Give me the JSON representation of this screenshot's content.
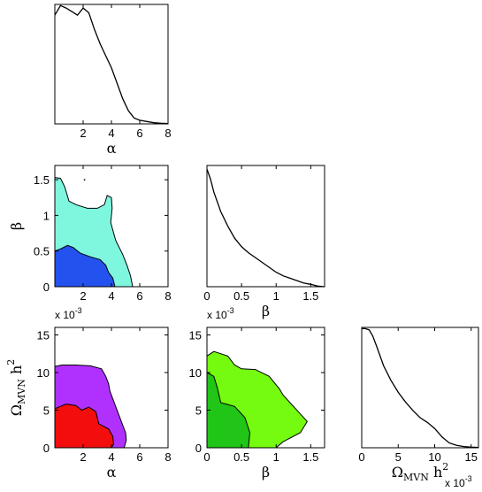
{
  "chart_data": [
    {
      "type": "line",
      "panel": "alpha-marginal",
      "xlabel": "α",
      "xlim": [
        0,
        8
      ],
      "xticks": [
        "2",
        "4",
        "6",
        "8"
      ],
      "x": [
        0,
        0.4,
        0.8,
        1.2,
        1.6,
        2.0,
        2.4,
        2.8,
        3.2,
        3.6,
        4.0,
        4.4,
        4.8,
        5.2,
        5.6,
        6.0,
        6.5,
        7.0,
        7.5,
        8.0
      ],
      "y": [
        0.91,
        0.99,
        0.97,
        0.94,
        0.91,
        0.97,
        0.93,
        0.79,
        0.67,
        0.57,
        0.47,
        0.34,
        0.21,
        0.11,
        0.05,
        0.03,
        0.02,
        0.01,
        0.005,
        0.003
      ],
      "ylim": [
        0,
        1
      ]
    },
    {
      "type": "line",
      "panel": "beta-marginal",
      "xlabel": "β",
      "xlim": [
        0,
        1.7
      ],
      "xticks": [
        "0",
        "0.5",
        "1",
        "1.5"
      ],
      "scale_label": "x 10",
      "scale_exp": "-3",
      "x": [
        0,
        0.05,
        0.1,
        0.2,
        0.3,
        0.4,
        0.5,
        0.6,
        0.7,
        0.8,
        0.9,
        1.0,
        1.1,
        1.2,
        1.3,
        1.4,
        1.5,
        1.6,
        1.7
      ],
      "y": [
        0.97,
        0.89,
        0.78,
        0.62,
        0.5,
        0.4,
        0.33,
        0.28,
        0.24,
        0.2,
        0.16,
        0.12,
        0.09,
        0.07,
        0.05,
        0.03,
        0.02,
        0.005,
        0.0
      ],
      "ylim": [
        0,
        1
      ]
    },
    {
      "type": "line",
      "panel": "omega-marginal",
      "xlabel": "Ω",
      "xlabel_sub": "MVN",
      "xlabel_tail": " h",
      "xlabel_sup": "2",
      "xlim": [
        0,
        16
      ],
      "xticks": [
        "0",
        "5",
        "10",
        "15"
      ],
      "scale_label": "x 10",
      "scale_exp": "-3",
      "x": [
        0,
        0.5,
        1,
        1.5,
        2,
        3,
        4,
        5,
        6,
        7,
        8,
        9,
        10,
        11,
        12,
        13,
        14,
        15,
        16
      ],
      "y": [
        0.99,
        0.99,
        0.98,
        0.93,
        0.85,
        0.68,
        0.56,
        0.46,
        0.38,
        0.31,
        0.25,
        0.21,
        0.16,
        0.09,
        0.04,
        0.02,
        0.01,
        0.005,
        0.003
      ],
      "ylim": [
        0,
        1
      ]
    },
    {
      "type": "contour",
      "panel": "alpha-beta",
      "ylabel": "β",
      "xlim": [
        0,
        8
      ],
      "ylim": [
        0,
        1.7
      ],
      "xticks": [
        "2",
        "4",
        "6",
        "8"
      ],
      "yticks": [
        "0",
        "0.5",
        "1",
        "1.5"
      ],
      "scale_label": "x 10",
      "scale_exp": "-3",
      "outer_color": "#7ff7df",
      "inner_color": "#2352ee",
      "outer": [
        [
          0,
          0
        ],
        [
          0,
          1.53
        ],
        [
          0.4,
          1.52
        ],
        [
          0.7,
          1.4
        ],
        [
          1.0,
          1.2
        ],
        [
          1.5,
          1.15
        ],
        [
          2.3,
          1.1
        ],
        [
          3.0,
          1.1
        ],
        [
          3.5,
          1.15
        ],
        [
          3.7,
          1.28
        ],
        [
          4.0,
          1.25
        ],
        [
          4.05,
          1.1
        ],
        [
          3.95,
          0.9
        ],
        [
          4.3,
          0.65
        ],
        [
          4.8,
          0.45
        ],
        [
          5.1,
          0.3
        ],
        [
          5.35,
          0.15
        ],
        [
          5.5,
          0
        ]
      ],
      "inner": [
        [
          0,
          0
        ],
        [
          0,
          0.5
        ],
        [
          0.4,
          0.53
        ],
        [
          0.9,
          0.58
        ],
        [
          1.3,
          0.55
        ],
        [
          1.8,
          0.47
        ],
        [
          2.5,
          0.42
        ],
        [
          3.2,
          0.38
        ],
        [
          3.6,
          0.3
        ],
        [
          3.8,
          0.2
        ],
        [
          4.1,
          0.12
        ],
        [
          4.25,
          0
        ]
      ],
      "speck": [
        2.1,
        1.5
      ]
    },
    {
      "type": "contour",
      "panel": "alpha-omega",
      "xlabel": "α",
      "ylabel": "Ω",
      "ylabel_sub": "MVN",
      "ylabel_tail": " h",
      "ylabel_sup": "2",
      "xlim": [
        0,
        8
      ],
      "ylim": [
        0,
        16
      ],
      "xticks": [
        "2",
        "4",
        "6",
        "8"
      ],
      "yticks": [
        "0",
        "5",
        "10",
        "15"
      ],
      "outer_color": "#b031fd",
      "inner_color": "#f40d0d",
      "outer": [
        [
          0,
          0
        ],
        [
          0,
          10.8
        ],
        [
          0.5,
          11.0
        ],
        [
          1.5,
          11.0
        ],
        [
          2.5,
          10.9
        ],
        [
          3.3,
          10.5
        ],
        [
          3.6,
          9.5
        ],
        [
          3.8,
          8.5
        ],
        [
          3.9,
          7.5
        ],
        [
          4.2,
          6.0
        ],
        [
          4.5,
          4.5
        ],
        [
          4.8,
          3.0
        ],
        [
          5.0,
          2.0
        ],
        [
          5.05,
          1.0
        ],
        [
          4.9,
          0
        ]
      ],
      "inner": [
        [
          0,
          0
        ],
        [
          0,
          5.2
        ],
        [
          0.8,
          5.8
        ],
        [
          1.5,
          5.6
        ],
        [
          1.9,
          5.0
        ],
        [
          2.4,
          5.4
        ],
        [
          2.9,
          4.8
        ],
        [
          3.1,
          3.2
        ],
        [
          3.8,
          2.5
        ],
        [
          4.1,
          1.5
        ],
        [
          4.15,
          0.5
        ],
        [
          4.0,
          0
        ]
      ]
    },
    {
      "type": "contour",
      "panel": "beta-omega",
      "xlabel": "β",
      "xlim": [
        0,
        1.7
      ],
      "ylim": [
        0,
        16
      ],
      "xticks": [
        "0",
        "0.5",
        "1",
        "1.5"
      ],
      "yticks": [
        "0",
        "5",
        "10",
        "15"
      ],
      "outer_color": "#74fb10",
      "inner_color": "#20c517",
      "outer": [
        [
          0,
          0
        ],
        [
          0,
          12.2
        ],
        [
          0.1,
          12.8
        ],
        [
          0.3,
          12.2
        ],
        [
          0.4,
          11.0
        ],
        [
          0.5,
          10.5
        ],
        [
          0.7,
          10.4
        ],
        [
          0.9,
          9.5
        ],
        [
          1.05,
          7.8
        ],
        [
          1.1,
          7.0
        ],
        [
          1.2,
          6.0
        ],
        [
          1.35,
          4.5
        ],
        [
          1.45,
          3.5
        ],
        [
          1.35,
          2.0
        ],
        [
          1.1,
          0.8
        ],
        [
          1.0,
          0
        ]
      ],
      "inner": [
        [
          0,
          0
        ],
        [
          0,
          10.0
        ],
        [
          0.1,
          9.5
        ],
        [
          0.15,
          8.0
        ],
        [
          0.2,
          6.0
        ],
        [
          0.4,
          5.5
        ],
        [
          0.55,
          4.0
        ],
        [
          0.62,
          2.0
        ],
        [
          0.6,
          0
        ]
      ]
    }
  ]
}
